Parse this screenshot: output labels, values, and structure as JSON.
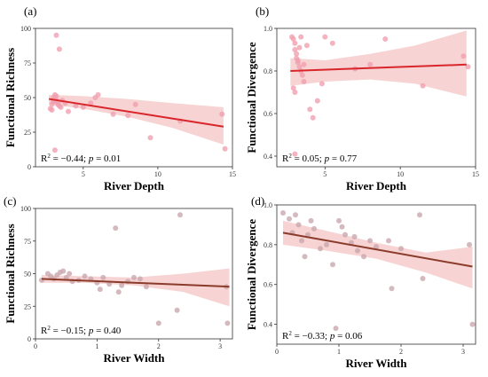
{
  "chart_data": [
    {
      "type": "scatter",
      "panel_label": "(a)",
      "xlabel": "River Depth",
      "ylabel": "Functional Richness",
      "xlim": [
        1.8,
        15
      ],
      "ylim": [
        0,
        100
      ],
      "xticks": [
        5,
        10,
        15
      ],
      "yticks": [
        0,
        25,
        50,
        75,
        100
      ],
      "annotation": {
        "prefix": "R",
        "sup": "2",
        "text": " = −0.44; ",
        "p": "p",
        "rest": " = 0.01"
      },
      "fit": {
        "x": [
          2.7,
          14.4
        ],
        "y": [
          49,
          29
        ]
      },
      "band": {
        "x": [
          2.7,
          5,
          8,
          11,
          14.4
        ],
        "upper": [
          52,
          51,
          49,
          46,
          43
        ],
        "lower": [
          45,
          42,
          36,
          28,
          16
        ]
      },
      "points": {
        "x": [
          2.8,
          2.9,
          3.0,
          3.0,
          3.1,
          3.2,
          3.3,
          3.4,
          2.9,
          3.0,
          3.1,
          3.2,
          3.3,
          3.5,
          3.6,
          3.8,
          3.2,
          3.4,
          4.0,
          4.5,
          5.0,
          5.5,
          5.8,
          6.0,
          7.0,
          8.0,
          8.5,
          9.5,
          11.5,
          14.3,
          14.5,
          3.1
        ],
        "y": [
          42,
          45,
          50,
          47,
          52,
          48,
          46,
          44,
          41,
          47,
          49,
          51,
          45,
          43,
          48,
          46,
          95,
          85,
          40,
          44,
          43,
          46,
          50,
          52,
          38,
          37,
          45,
          21,
          33,
          38,
          13,
          12
        ]
      },
      "colors": {
        "point": "#f0a0b0",
        "line": "#d9262b",
        "band": "#f4c4c4"
      }
    },
    {
      "type": "scatter",
      "panel_label": "(b)",
      "xlabel": "River Depth",
      "ylabel": "Functional Divergence",
      "xlim": [
        1.8,
        15
      ],
      "ylim": [
        0.35,
        1.0
      ],
      "xticks": [
        5,
        10,
        15
      ],
      "yticks": [
        0.4,
        0.6,
        0.8,
        1.0
      ],
      "annotation": {
        "prefix": "R",
        "sup": "2",
        "text": " = 0.05; ",
        "p": "p",
        "rest": " = 0.77"
      },
      "fit": {
        "x": [
          2.7,
          14.4
        ],
        "y": [
          0.8,
          0.83
        ]
      },
      "band": {
        "x": [
          2.7,
          5,
          8,
          11,
          14.4
        ],
        "upper": [
          0.86,
          0.85,
          0.88,
          0.92,
          0.99
        ],
        "lower": [
          0.73,
          0.75,
          0.76,
          0.74,
          0.68
        ]
      },
      "points": {
        "x": [
          2.8,
          2.9,
          3.0,
          3.0,
          3.1,
          3.2,
          3.3,
          3.4,
          3.5,
          3.6,
          2.9,
          3.0,
          3.1,
          3.2,
          3.3,
          3.4,
          3.6,
          3.8,
          4.0,
          4.2,
          4.5,
          4.8,
          5.0,
          5.5,
          7.0,
          8.0,
          9.0,
          11.5,
          14.2,
          14.5,
          3.0
        ],
        "y": [
          0.96,
          0.95,
          0.93,
          0.9,
          0.88,
          0.85,
          0.82,
          0.8,
          0.78,
          0.75,
          0.72,
          0.7,
          0.86,
          0.84,
          0.91,
          0.96,
          0.83,
          0.92,
          0.62,
          0.58,
          0.66,
          0.74,
          0.96,
          0.93,
          0.81,
          0.83,
          0.95,
          0.73,
          0.87,
          0.82,
          0.41
        ]
      },
      "colors": {
        "point": "#f0a0b0",
        "line": "#d9262b",
        "band": "#f4c4c4"
      }
    },
    {
      "type": "scatter",
      "panel_label": "(c)",
      "xlabel": "River Width",
      "ylabel": "Functional Richness",
      "xlim": [
        0,
        3.2
      ],
      "ylim": [
        0,
        100
      ],
      "xticks": [
        0,
        1,
        2,
        3
      ],
      "yticks": [
        0,
        25,
        50,
        75,
        100
      ],
      "annotation": {
        "prefix": "R",
        "sup": "2",
        "text": " = −0.15; ",
        "p": "p",
        "rest": " = 0.40"
      },
      "fit": {
        "x": [
          0.1,
          3.15
        ],
        "y": [
          46,
          40
        ]
      },
      "band": {
        "x": [
          0.1,
          0.8,
          1.6,
          2.4,
          3.15
        ],
        "upper": [
          49,
          48,
          47,
          50,
          54
        ],
        "lower": [
          43,
          43,
          41,
          36,
          25
        ]
      },
      "points": {
        "x": [
          0.1,
          0.2,
          0.25,
          0.3,
          0.35,
          0.4,
          0.5,
          0.6,
          0.7,
          0.8,
          0.9,
          1.0,
          1.05,
          1.1,
          1.2,
          1.3,
          1.35,
          1.4,
          1.5,
          1.6,
          1.7,
          1.8,
          2.0,
          2.3,
          2.35,
          3.1,
          3.12,
          0.45,
          0.55
        ],
        "y": [
          45,
          50,
          48,
          46,
          49,
          51,
          47,
          44,
          45,
          48,
          46,
          43,
          38,
          47,
          42,
          85,
          36,
          41,
          44,
          47,
          46,
          40,
          12,
          22,
          95,
          40,
          12,
          52,
          50
        ]
      },
      "colors": {
        "point": "#c9a7ae",
        "line": "#8a3b2a",
        "band": "#f4c4c4"
      }
    },
    {
      "type": "scatter",
      "panel_label": "(d)",
      "xlabel": "River Width",
      "ylabel": "Functional Divergence",
      "xlim": [
        0,
        3.2
      ],
      "ylim": [
        0.3,
        1.0
      ],
      "xticks": [
        0,
        1,
        2,
        3
      ],
      "yticks": [
        0.4,
        0.6,
        0.8,
        1.0
      ],
      "annotation": {
        "prefix": "R",
        "sup": "2",
        "text": " = −0.33; ",
        "p": "p",
        "rest": " = 0.06"
      },
      "fit": {
        "x": [
          0.1,
          3.15
        ],
        "y": [
          0.86,
          0.69
        ]
      },
      "band": {
        "x": [
          0.1,
          0.8,
          1.6,
          2.4,
          3.15
        ],
        "upper": [
          0.92,
          0.87,
          0.81,
          0.76,
          0.79
        ],
        "lower": [
          0.8,
          0.77,
          0.73,
          0.66,
          0.58
        ]
      },
      "points": {
        "x": [
          0.1,
          0.2,
          0.25,
          0.3,
          0.35,
          0.4,
          0.45,
          0.5,
          0.55,
          0.6,
          0.7,
          0.8,
          0.9,
          1.0,
          1.05,
          1.1,
          1.2,
          1.25,
          1.3,
          1.4,
          1.5,
          1.6,
          1.8,
          1.85,
          2.0,
          2.3,
          2.35,
          3.1,
          3.15,
          0.95
        ],
        "y": [
          0.96,
          0.93,
          0.86,
          0.95,
          0.9,
          0.82,
          0.74,
          0.85,
          0.92,
          0.88,
          0.78,
          0.8,
          0.7,
          0.92,
          0.89,
          0.85,
          0.81,
          0.84,
          0.77,
          0.74,
          0.82,
          0.79,
          0.82,
          0.58,
          0.78,
          0.95,
          0.63,
          0.8,
          0.4,
          0.38
        ]
      },
      "colors": {
        "point": "#c9a7ae",
        "line": "#8a3b2a",
        "band": "#f4c4c4"
      }
    }
  ]
}
